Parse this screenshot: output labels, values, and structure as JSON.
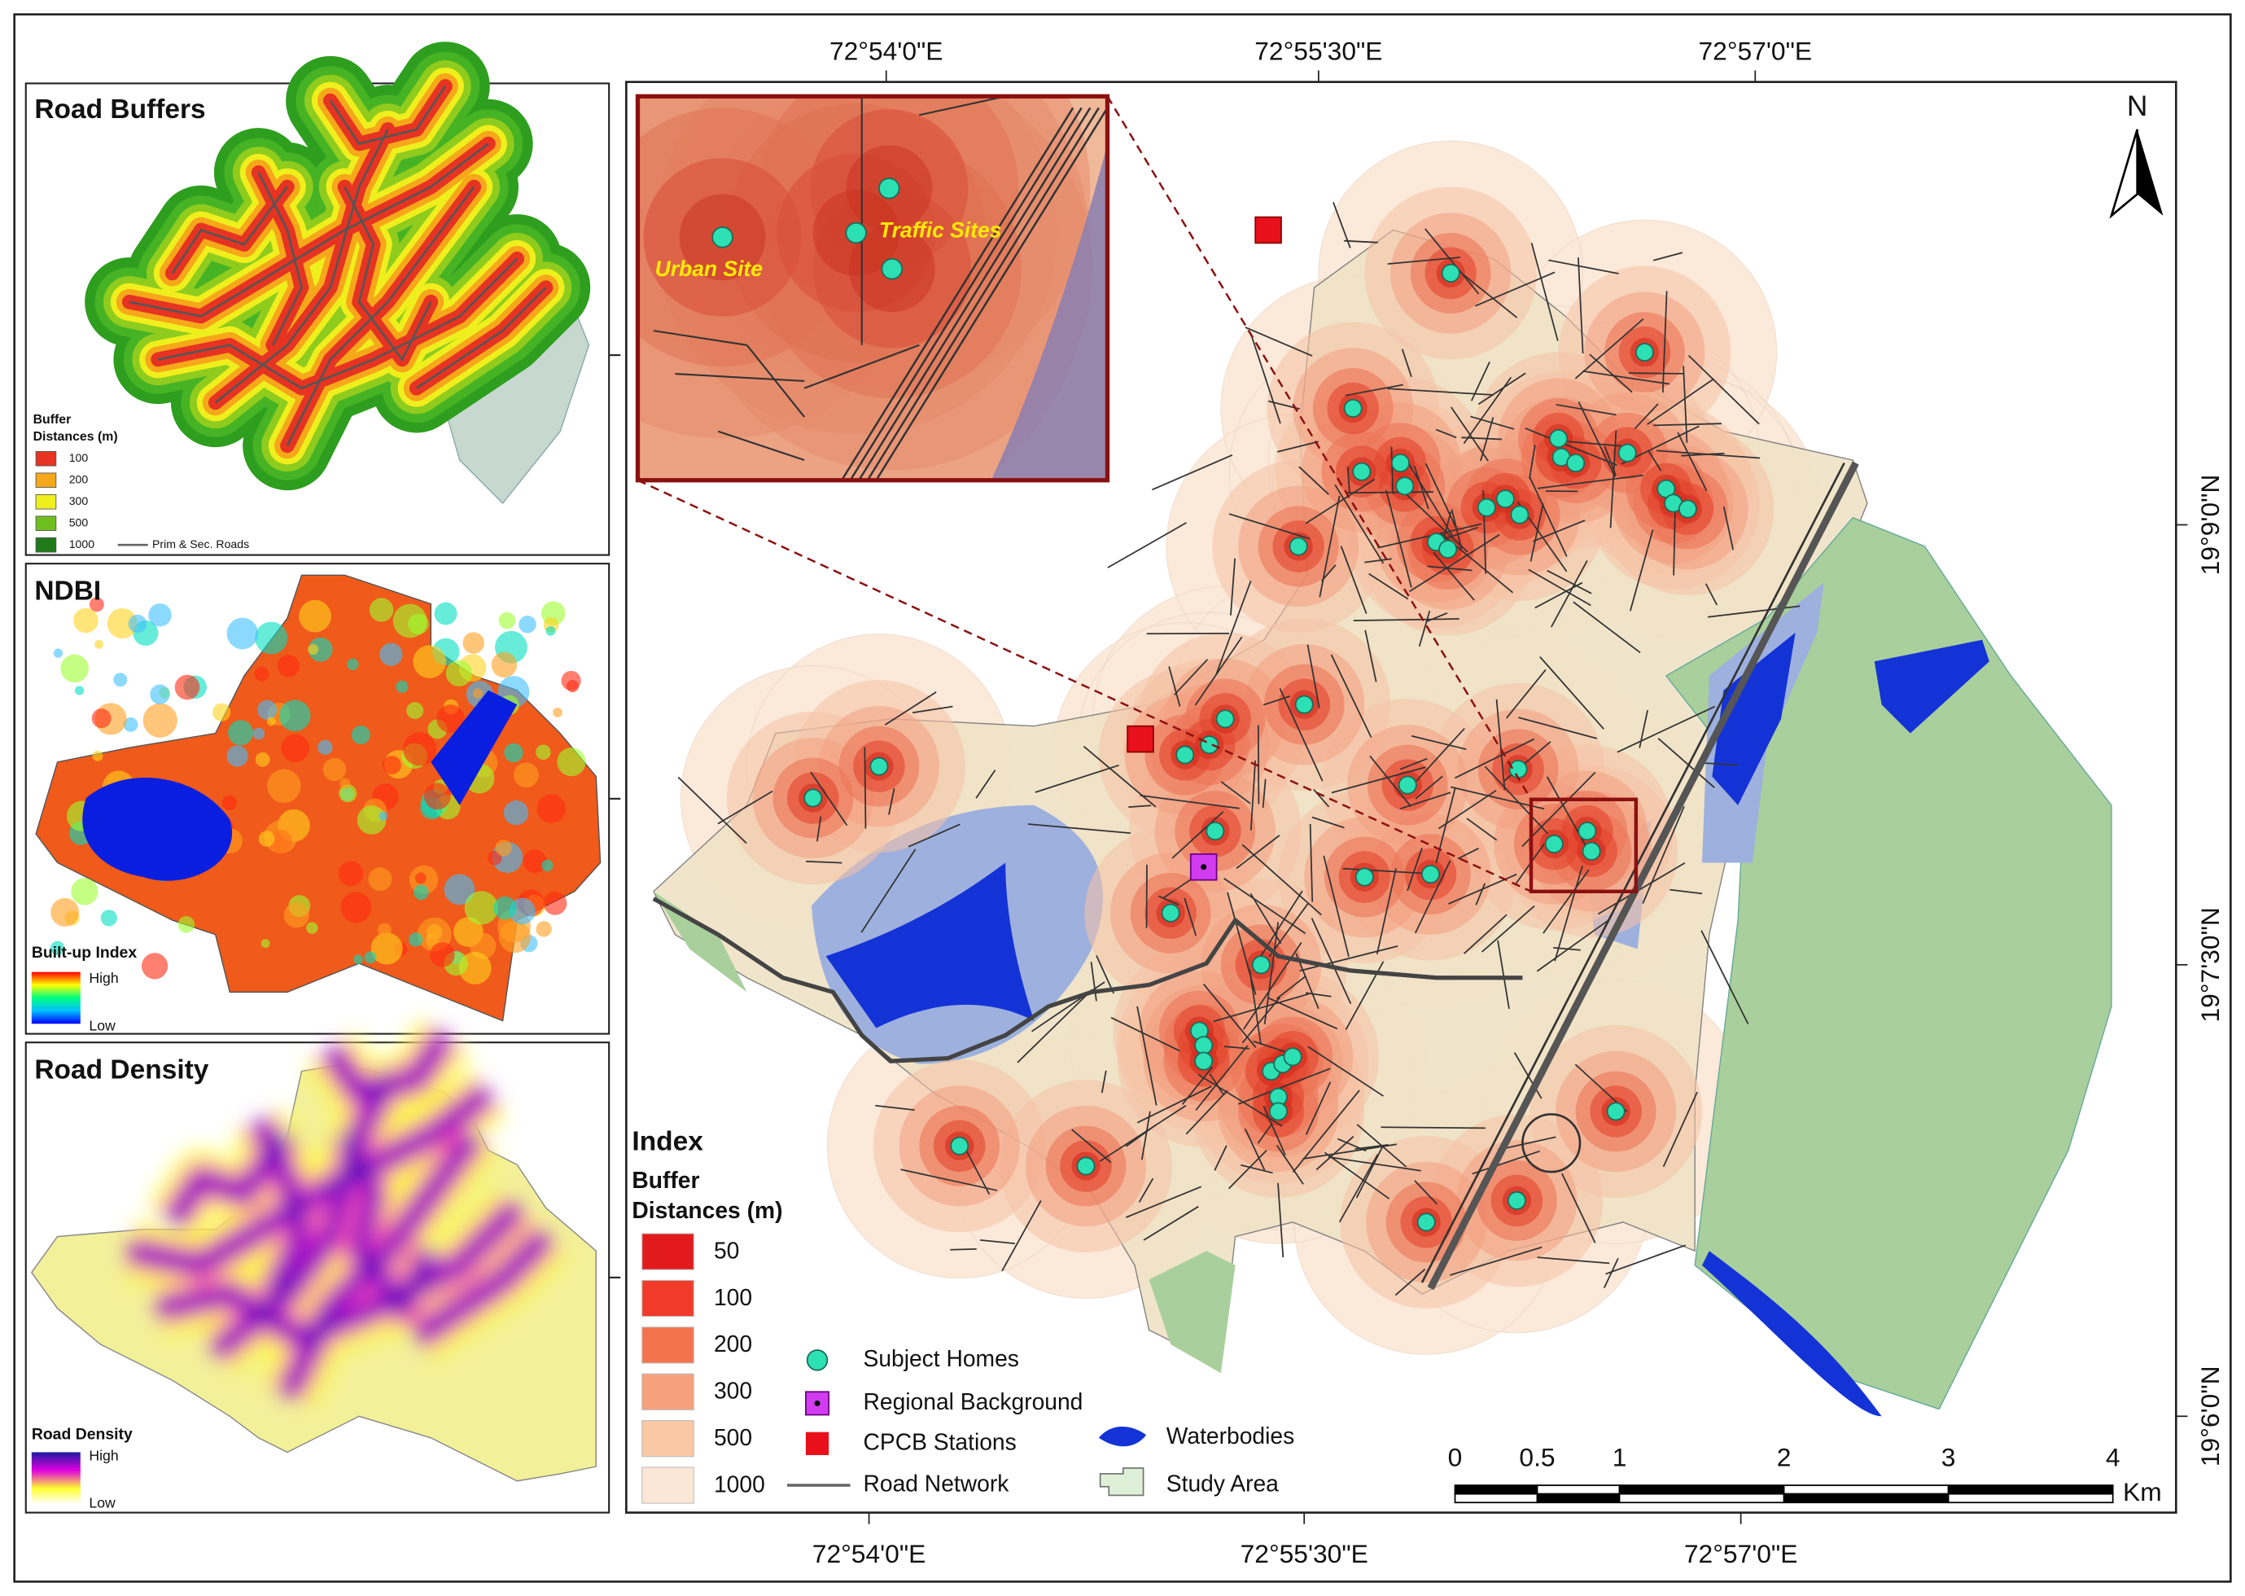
{
  "panels": [
    {
      "title": "Road Buffers",
      "legend_title": [
        "Buffer",
        "Distances (m)"
      ],
      "legend_items": [
        "100",
        "200",
        "300",
        "500",
        "1000"
      ],
      "road_label": "Prim & Sec. Roads"
    },
    {
      "title": "NDBI",
      "legend_title": [
        "Built-up Index"
      ],
      "high": "High",
      "low": "Low"
    },
    {
      "title": "Road Density",
      "legend_title": [
        "Road Density"
      ],
      "high": "High",
      "low": "Low"
    }
  ],
  "map": {
    "top_coords": [
      "72°54'0\"E",
      "72°55'30\"E",
      "72°57'0\"E"
    ],
    "bottom_coords": [
      "72°54'0\"E",
      "72°55'30\"E",
      "72°57'0\"E"
    ],
    "right_coords": [
      "19°9'0\"N",
      "19°7'30\"N",
      "19°6'0\"N"
    ],
    "north": "N",
    "inset_labels": [
      "Urban Site",
      "Traffic Sites"
    ],
    "legend": {
      "title": "Index",
      "buffer_title": [
        "Buffer",
        "Distances (m)"
      ],
      "buffers": [
        "50",
        "100",
        "200",
        "300",
        "500",
        "1000"
      ],
      "symbols": [
        "Subject Homes",
        "Regional Background",
        "CPCB Stations",
        "Road Network",
        "Waterbodies",
        "Study Area"
      ]
    },
    "scale": {
      "ticks": [
        0,
        0.5,
        1,
        2,
        3,
        4
      ],
      "unit": "Km"
    }
  }
}
